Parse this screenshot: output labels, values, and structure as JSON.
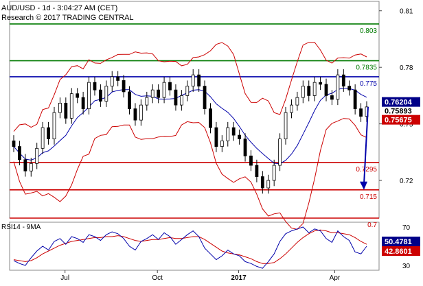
{
  "colors": {
    "support": "#cc0000",
    "resistance": "#007a00",
    "pivot": "#0000aa",
    "bollinger": "#cc0000",
    "ma": "#0000aa",
    "candles": "#000000",
    "rsi": "#0000aa",
    "rsi_ma": "#cc0000",
    "arrow": "#0000aa",
    "badge_blue": "#000088",
    "badge_red": "#cc0000"
  },
  "header": {
    "title": "AUD/USD - 1d - 3:04:27 AM (CET)",
    "source": "Research © 2017 TRADING CENTRAL"
  },
  "chart_data": [
    {
      "type": "candlestick",
      "ylim": [
        0.7,
        0.815
      ],
      "y_ticks": [
        "0.81",
        "0.78",
        "0.75",
        "0.72"
      ],
      "x_ticks": [
        "Jul",
        "Oct",
        "2017",
        "Apr"
      ],
      "close": [
        0.738,
        0.731,
        0.725,
        0.729,
        0.737,
        0.748,
        0.742,
        0.756,
        0.761,
        0.753,
        0.766,
        0.764,
        0.758,
        0.772,
        0.768,
        0.762,
        0.77,
        0.775,
        0.773,
        0.767,
        0.758,
        0.752,
        0.76,
        0.764,
        0.768,
        0.764,
        0.772,
        0.768,
        0.76,
        0.765,
        0.77,
        0.776,
        0.77,
        0.758,
        0.748,
        0.738,
        0.741,
        0.748,
        0.744,
        0.742,
        0.733,
        0.728,
        0.722,
        0.716,
        0.72,
        0.728,
        0.742,
        0.756,
        0.76,
        0.764,
        0.77,
        0.765,
        0.772,
        0.771,
        0.765,
        0.763,
        0.776,
        0.77,
        0.768,
        0.758,
        0.754,
        0.759
      ],
      "levels": [
        {
          "value": 0.803,
          "label": "0.803",
          "kind": "resistance"
        },
        {
          "value": 0.7835,
          "label": "0.7835",
          "kind": "resistance"
        },
        {
          "value": 0.775,
          "label": "0.775",
          "kind": "pivot"
        },
        {
          "value": 0.7295,
          "label": "0.7295",
          "kind": "support"
        },
        {
          "value": 0.715,
          "label": "0.715",
          "kind": "support"
        },
        {
          "value": 0.7,
          "label": "0.7",
          "kind": "support"
        }
      ],
      "badges": [
        {
          "label": "0.76204",
          "kind": "blue"
        },
        {
          "label": "0.75893",
          "kind": "plain"
        },
        {
          "label": "0.75675",
          "kind": "red"
        }
      ],
      "forecast": {
        "from": 0.759,
        "to": 0.715
      }
    },
    {
      "type": "line",
      "title": "RSI14 - 9MA",
      "ylim": [
        25,
        75
      ],
      "y_ticks": [
        "70",
        "30"
      ],
      "rsi": [
        35,
        32,
        30,
        38,
        45,
        50,
        46,
        55,
        58,
        52,
        60,
        58,
        54,
        62,
        60,
        56,
        62,
        65,
        63,
        58,
        50,
        46,
        55,
        58,
        62,
        57,
        64,
        60,
        52,
        57,
        62,
        66,
        60,
        48,
        42,
        36,
        40,
        46,
        42,
        40,
        34,
        32,
        29,
        27,
        34,
        42,
        55,
        63,
        66,
        68,
        70,
        64,
        68,
        66,
        58,
        54,
        66,
        60,
        56,
        44,
        42,
        50
      ],
      "ma": [
        36,
        35,
        34,
        35,
        38,
        42,
        45,
        48,
        51,
        53,
        55,
        56,
        57,
        58,
        59,
        59,
        60,
        60,
        61,
        60,
        58,
        56,
        55,
        56,
        57,
        57,
        58,
        59,
        58,
        58,
        59,
        60,
        60,
        57,
        53,
        49,
        45,
        43,
        42,
        41,
        39,
        37,
        34,
        32,
        32,
        33,
        37,
        42,
        48,
        54,
        59,
        63,
        66,
        67,
        66,
        64,
        64,
        63,
        62,
        59,
        55,
        52
      ],
      "badges": [
        {
          "label": "50.4781",
          "kind": "blue"
        },
        {
          "label": "42.8601",
          "kind": "red"
        }
      ]
    }
  ]
}
